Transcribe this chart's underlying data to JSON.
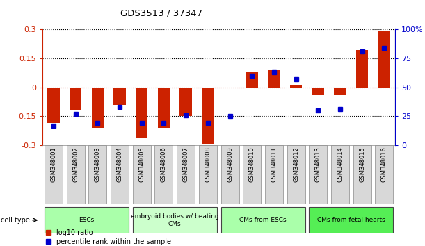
{
  "title": "GDS3513 / 37347",
  "samples": [
    "GSM348001",
    "GSM348002",
    "GSM348003",
    "GSM348004",
    "GSM348005",
    "GSM348006",
    "GSM348007",
    "GSM348008",
    "GSM348009",
    "GSM348010",
    "GSM348011",
    "GSM348012",
    "GSM348013",
    "GSM348014",
    "GSM348015",
    "GSM348016"
  ],
  "log10_ratio": [
    -0.185,
    -0.12,
    -0.21,
    -0.09,
    -0.26,
    -0.21,
    -0.15,
    -0.295,
    -0.005,
    0.08,
    0.09,
    0.01,
    -0.04,
    -0.04,
    0.195,
    0.295
  ],
  "percentile_rank": [
    17,
    27,
    19,
    33,
    19,
    19,
    26,
    19,
    25,
    60,
    63,
    57,
    30,
    31,
    81,
    84
  ],
  "cell_type_groups": [
    {
      "label": "ESCs",
      "start": 0,
      "end": 3,
      "color": "#aaffaa"
    },
    {
      "label": "embryoid bodies w/ beating\nCMs",
      "start": 4,
      "end": 7,
      "color": "#ccffcc"
    },
    {
      "label": "CMs from ESCs",
      "start": 8,
      "end": 11,
      "color": "#aaffaa"
    },
    {
      "label": "CMs from fetal hearts",
      "start": 12,
      "end": 15,
      "color": "#55ee55"
    }
  ],
  "ylim": [
    -0.3,
    0.3
  ],
  "yticks": [
    -0.3,
    -0.15,
    0,
    0.15,
    0.3
  ],
  "bar_color": "#cc2200",
  "dot_color": "#0000cc",
  "legend_red": "log10 ratio",
  "legend_blue": "percentile rank within the sample"
}
